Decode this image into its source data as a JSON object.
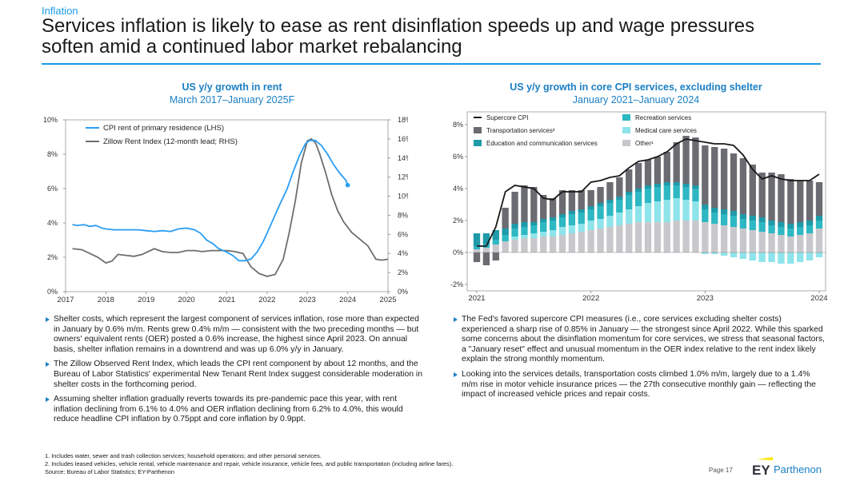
{
  "header": {
    "section": "Inflation",
    "title_line1": "Services inflation is likely to ease as rent disinflation speeds up and wage pressures",
    "title_line2": "soften amid a continued labor market rebalancing"
  },
  "left_chart_title": {
    "line1": "US y/y growth in rent",
    "line2": "March 2017–January 2025F"
  },
  "right_chart_title": {
    "line1": "US y/y growth in core CPI services, excluding shelter",
    "line2": "January 2021–January 2024"
  },
  "colors": {
    "accent": "#1a9ae6",
    "cpi_rent": "#2a9df4",
    "zillow": "#6e6e6e",
    "supercore": "#1a1a1a",
    "transportation": "#6b6b72",
    "education": "#1f9aa8",
    "recreation": "#2db8c3",
    "medical": "#8ee4ea",
    "other": "#c8c8cc"
  },
  "chart_data": [
    {
      "type": "line",
      "title": "US y/y growth in rent",
      "subtitle": "March 2017–January 2025F",
      "x_ticks": [
        "2017",
        "2018",
        "2019",
        "2020",
        "2021",
        "2022",
        "2023",
        "2024",
        "2025"
      ],
      "y_left_ticks": [
        "0%",
        "2%",
        "4%",
        "6%",
        "8%",
        "10%"
      ],
      "y_right_ticks": [
        "0%",
        "2%",
        "4%",
        "6%",
        "8%",
        "10%",
        "12%",
        "14%",
        "16%",
        "18%"
      ],
      "ylim_left": [
        0,
        10
      ],
      "ylim_right": [
        0,
        18
      ],
      "xlim": [
        2017,
        2025
      ],
      "legend_position": "top-left",
      "series": [
        {
          "name": "CPI rent of primary residence (LHS)",
          "axis": "left",
          "x": [
            2017.17,
            2017.3,
            2017.45,
            2017.6,
            2017.75,
            2017.9,
            2018.0,
            2018.2,
            2018.4,
            2018.6,
            2018.8,
            2019.0,
            2019.2,
            2019.4,
            2019.6,
            2019.8,
            2020.0,
            2020.2,
            2020.35,
            2020.5,
            2020.65,
            2020.8,
            2021.0,
            2021.15,
            2021.3,
            2021.45,
            2021.6,
            2021.75,
            2021.9,
            2022.0,
            2022.15,
            2022.3,
            2022.5,
            2022.65,
            2022.8,
            2022.95,
            2023.05,
            2023.2,
            2023.35,
            2023.5,
            2023.65,
            2023.8,
            2023.95,
            2024.0
          ],
          "values": [
            3.9,
            3.85,
            3.9,
            3.8,
            3.85,
            3.7,
            3.65,
            3.6,
            3.6,
            3.6,
            3.6,
            3.55,
            3.5,
            3.55,
            3.5,
            3.65,
            3.7,
            3.6,
            3.4,
            3.0,
            2.8,
            2.5,
            2.3,
            2.1,
            1.8,
            1.8,
            1.9,
            2.3,
            2.9,
            3.4,
            4.2,
            5.0,
            6.0,
            7.0,
            7.9,
            8.6,
            8.8,
            8.8,
            8.5,
            8.0,
            7.4,
            6.9,
            6.5,
            6.2
          ]
        },
        {
          "name": "Zillow Rent Index (12-month lead; RHS)",
          "axis": "right",
          "x": [
            2017.17,
            2017.4,
            2017.6,
            2017.8,
            2018.0,
            2018.15,
            2018.3,
            2018.5,
            2018.7,
            2018.9,
            2019.0,
            2019.2,
            2019.4,
            2019.6,
            2019.8,
            2020.0,
            2020.2,
            2020.4,
            2020.6,
            2020.8,
            2021.0,
            2021.2,
            2021.4,
            2021.6,
            2021.8,
            2022.0,
            2022.2,
            2022.4,
            2022.55,
            2022.7,
            2022.85,
            2023.0,
            2023.1,
            2023.2,
            2023.3,
            2023.45,
            2023.6,
            2023.75,
            2023.9,
            2024.1,
            2024.3,
            2024.5,
            2024.7,
            2024.85,
            2025.0
          ],
          "values": [
            4.5,
            4.4,
            4.0,
            3.6,
            3.0,
            3.2,
            3.9,
            3.8,
            3.7,
            3.9,
            4.1,
            4.5,
            4.2,
            4.1,
            4.1,
            4.3,
            4.3,
            4.2,
            4.3,
            4.3,
            4.3,
            4.2,
            4.0,
            2.6,
            1.9,
            1.6,
            1.8,
            3.4,
            6.2,
            9.5,
            13.5,
            15.8,
            16.0,
            15.6,
            14.5,
            12.5,
            10.2,
            8.5,
            7.3,
            6.2,
            5.5,
            4.8,
            3.4,
            3.3,
            3.4
          ]
        }
      ]
    },
    {
      "type": "bar",
      "stacked": true,
      "title": "US y/y growth in core CPI services, excluding shelter",
      "subtitle": "January 2021–January 2024",
      "x_ticks": [
        "2021",
        "2022",
        "2023",
        "2024"
      ],
      "y_ticks": [
        "-2%",
        "0%",
        "2%",
        "4%",
        "6%",
        "8%"
      ],
      "ylim": [
        -2.4,
        8.8
      ],
      "legend_position": "top",
      "categories": [
        "Jan 2021",
        "Feb 2021",
        "Mar 2021",
        "Apr 2021",
        "May 2021",
        "Jun 2021",
        "Jul 2021",
        "Aug 2021",
        "Sep 2021",
        "Oct 2021",
        "Nov 2021",
        "Dec 2021",
        "Jan 2022",
        "Feb 2022",
        "Mar 2022",
        "Apr 2022",
        "May 2022",
        "Jun 2022",
        "Jul 2022",
        "Aug 2022",
        "Sep 2022",
        "Oct 2022",
        "Nov 2022",
        "Dec 2022",
        "Jan 2023",
        "Feb 2023",
        "Mar 2023",
        "Apr 2023",
        "May 2023",
        "Jun 2023",
        "Jul 2023",
        "Aug 2023",
        "Sep 2023",
        "Oct 2023",
        "Nov 2023",
        "Dec 2023",
        "Jan 2024"
      ],
      "series": [
        {
          "name": "Other¹",
          "values": [
            0.2,
            0.3,
            0.5,
            0.7,
            0.8,
            0.9,
            0.9,
            1.0,
            1.0,
            1.1,
            1.2,
            1.3,
            1.4,
            1.5,
            1.6,
            1.7,
            1.8,
            1.9,
            1.9,
            1.9,
            1.9,
            2.0,
            2.0,
            2.0,
            1.9,
            1.8,
            1.7,
            1.6,
            1.5,
            1.4,
            1.3,
            1.2,
            1.1,
            1.0,
            1.1,
            1.2,
            1.5
          ]
        },
        {
          "name": "Medical care services",
          "values": [
            0.0,
            0.0,
            0.0,
            0.0,
            0.2,
            0.2,
            0.3,
            0.3,
            0.4,
            0.5,
            0.5,
            0.5,
            0.6,
            0.6,
            0.7,
            0.8,
            0.9,
            1.0,
            1.2,
            1.3,
            1.4,
            1.4,
            1.3,
            1.2,
            -0.1,
            -0.1,
            -0.2,
            -0.3,
            -0.4,
            -0.5,
            -0.6,
            -0.6,
            -0.7,
            -0.7,
            -0.6,
            -0.5,
            -0.3
          ]
        },
        {
          "name": "Recreation services",
          "values": [
            0.2,
            0.2,
            0.3,
            0.4,
            0.5,
            0.5,
            0.5,
            0.6,
            0.6,
            0.6,
            0.7,
            0.7,
            0.7,
            0.8,
            0.8,
            0.8,
            0.9,
            0.9,
            0.9,
            0.9,
            0.9,
            0.8,
            0.8,
            0.8,
            0.8,
            0.7,
            0.7,
            0.7,
            0.6,
            0.6,
            0.6,
            0.5,
            0.5,
            0.5,
            0.5,
            0.5,
            0.5
          ]
        },
        {
          "name": "Education and communication services",
          "values": [
            0.8,
            0.7,
            0.6,
            0.4,
            0.3,
            0.3,
            0.2,
            0.2,
            0.2,
            0.2,
            0.2,
            0.2,
            0.2,
            0.2,
            0.2,
            0.2,
            0.2,
            0.2,
            0.2,
            0.2,
            0.2,
            0.2,
            0.2,
            0.2,
            0.3,
            0.3,
            0.3,
            0.3,
            0.3,
            0.3,
            0.3,
            0.3,
            0.3,
            0.3,
            0.3,
            0.3,
            0.3
          ]
        },
        {
          "name": "Transportation services²",
          "values": [
            -0.6,
            -0.8,
            -0.5,
            1.3,
            2.0,
            2.3,
            2.2,
            1.5,
            1.2,
            1.5,
            1.3,
            1.2,
            1.0,
            1.0,
            1.1,
            1.2,
            1.4,
            1.6,
            1.6,
            1.7,
            1.9,
            2.5,
            3.0,
            3.0,
            3.7,
            3.8,
            3.8,
            3.6,
            3.5,
            3.2,
            2.8,
            3.0,
            3.0,
            2.8,
            2.6,
            2.5,
            2.1
          ]
        }
      ],
      "line_series": {
        "name": "Supercore CPI",
        "values": [
          0.4,
          0.4,
          1.6,
          3.8,
          4.2,
          4.1,
          4.0,
          3.4,
          3.3,
          3.8,
          3.8,
          3.8,
          4.4,
          4.5,
          4.7,
          4.8,
          5.3,
          5.7,
          5.8,
          6.0,
          6.3,
          6.8,
          7.1,
          7.0,
          6.9,
          6.8,
          6.8,
          6.7,
          6.1,
          5.2,
          4.6,
          4.8,
          4.6,
          4.5,
          4.5,
          4.5,
          4.9
        ]
      }
    }
  ],
  "left_bullets": [
    "Shelter costs, which represent the largest component of services inflation, rose more than expected in January by 0.6% m/m. Rents grew 0.4% m/m — consistent with the two preceding months — but owners' equivalent rents (OER) posted a 0.6% increase, the highest since April 2023. On annual basis, shelter inflation remains in a downtrend and was up 6.0% y/y in January.",
    "The Zillow Observed Rent Index, which leads the CPI rent component by about 12 months, and the Bureau of Labor Statistics' experimental New Tenant Rent Index suggest considerable moderation in shelter costs in the forthcoming period.",
    "Assuming shelter inflation gradually reverts towards its pre-pandemic pace this year, with rent inflation declining from 6.1% to 4.0% and OER inflation declining from 6.2% to 4.0%, this would reduce headline CPI inflation by 0.75ppt and core inflation by 0.9ppt."
  ],
  "right_bullets": [
    "The Fed's favored supercore CPI measures (i.e., core services excluding shelter costs) experienced a sharp rise of 0.85% in January — the strongest since April 2022. While this sparked some concerns about the disinflation momentum for core services, we stress that seasonal factors, a \"January reset\" effect and unusual momentum in the OER index relative to the rent index likely explain the strong monthly momentum.",
    "Looking into the services details, transportation costs climbed 1.0% m/m, largely due to a 1.4% m/m rise in motor vehicle insurance prices — the 27th consecutive monthly gain — reflecting the impact of increased vehicle prices and repair costs."
  ],
  "footnotes": {
    "note1": "1.   Includes water, sewer and trash collection services; household operations; and other personal services.",
    "note2": "2.   Includes leased vehicles, vehicle rental, vehicle maintenance and repair, vehicle insurance, vehicle fees, and public transportation (including airline fares).",
    "source": "Source: Bureau of Labor Statistics; EY-Parthenon"
  },
  "page": {
    "number": "Page 17"
  },
  "logo": {
    "ey": "EY",
    "parthenon": "Parthenon"
  }
}
